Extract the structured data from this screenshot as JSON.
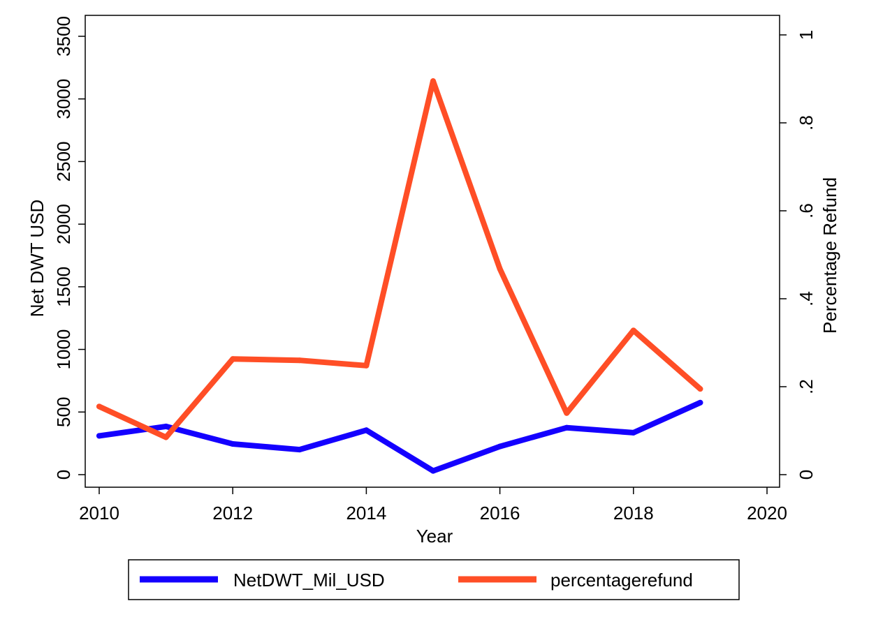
{
  "chart_data": {
    "type": "line",
    "xlabel": "Year",
    "ylabel_left": "Net DWT USD",
    "ylabel_right": "Percentage Refund",
    "xlim": [
      2010,
      2020
    ],
    "ylim_left": [
      0,
      3500
    ],
    "ylim_right": [
      0,
      1
    ],
    "x_ticks": [
      2010,
      2012,
      2014,
      2016,
      2018,
      2020
    ],
    "x_tick_labels": [
      "2010",
      "2012",
      "2014",
      "2016",
      "2018",
      "2020"
    ],
    "y_left_ticks": [
      0,
      500,
      1000,
      1500,
      2000,
      2500,
      3000,
      3500
    ],
    "y_left_tick_labels": [
      "0",
      "500",
      "1000",
      "1500",
      "2000",
      "2500",
      "3000",
      "3500"
    ],
    "y_right_ticks": [
      0,
      0.2,
      0.4,
      0.6,
      0.8,
      1
    ],
    "y_right_tick_labels": [
      "0",
      ".2",
      ".4",
      ".6",
      ".8",
      "1"
    ],
    "grid": false,
    "legend_position": "bottom",
    "series": [
      {
        "name": "NetDWT_Mil_USD",
        "axis": "left",
        "color": "#1400ff",
        "x": [
          2010,
          2011,
          2012,
          2013,
          2014,
          2015,
          2016,
          2017,
          2018,
          2019
        ],
        "values": [
          310,
          385,
          245,
          200,
          355,
          30,
          225,
          375,
          335,
          575
        ]
      },
      {
        "name": "percentagerefund",
        "axis": "right",
        "color": "#ff4e26",
        "x": [
          2010,
          2011,
          2012,
          2013,
          2014,
          2015,
          2016,
          2017,
          2018,
          2019
        ],
        "values": [
          0.155,
          0.085,
          0.263,
          0.26,
          0.248,
          0.895,
          0.468,
          0.14,
          0.328,
          0.195
        ]
      }
    ]
  }
}
